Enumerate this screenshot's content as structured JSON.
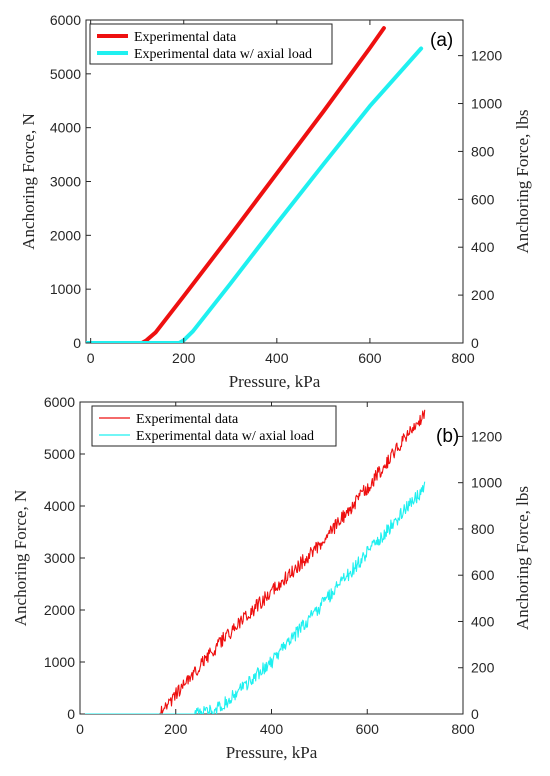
{
  "colors": {
    "series_red": "#ee1010",
    "series_cyan": "#1ff0f0",
    "axis": "#262626"
  },
  "chart_data": [
    {
      "type": "line",
      "panel_label": "(a)",
      "xlabel": "Pressure, kPa",
      "ylabel": "Anchoring Force, N",
      "ylabel_right": "Anchoring Force, lbs",
      "xlim": [
        -10,
        800
      ],
      "ylim": [
        0,
        6000
      ],
      "xticks": [
        0,
        200,
        400,
        600,
        800
      ],
      "yticks": [
        0,
        1000,
        2000,
        3000,
        4000,
        5000,
        6000
      ],
      "right_ticks_lbs": [
        0,
        200,
        400,
        600,
        800,
        1000,
        1200
      ],
      "lbs_per_newton": 0.2248,
      "legend": {
        "position": "top-left",
        "entries": [
          "Experimental data",
          "Experimental data w/ axial load"
        ]
      },
      "series": [
        {
          "name": "Experimental data",
          "color": "#ee1010",
          "style": "thick",
          "x": [
            -10,
            110,
            120,
            140,
            200,
            300,
            400,
            500,
            600,
            630
          ],
          "y": [
            0,
            0,
            50,
            200,
            870,
            2000,
            3150,
            4300,
            5480,
            5850
          ]
        },
        {
          "name": "Experimental data w/ axial load",
          "color": "#1ff0f0",
          "style": "thick",
          "x": [
            -10,
            190,
            200,
            220,
            300,
            400,
            500,
            600,
            710
          ],
          "y": [
            0,
            0,
            50,
            220,
            1100,
            2220,
            3320,
            4400,
            5470
          ]
        }
      ]
    },
    {
      "type": "line",
      "panel_label": "(b)",
      "xlabel": "Pressure, kPa",
      "ylabel": "Anchoring Force, N",
      "ylabel_right": "Anchoring Force, lbs",
      "xlim": [
        0,
        800
      ],
      "ylim": [
        0,
        6000
      ],
      "xticks": [
        0,
        200,
        400,
        600,
        800
      ],
      "yticks": [
        0,
        1000,
        2000,
        3000,
        4000,
        5000,
        6000
      ],
      "right_ticks_lbs": [
        0,
        200,
        400,
        600,
        800,
        1000,
        1200
      ],
      "lbs_per_newton": 0.2248,
      "legend": {
        "position": "top-left",
        "entries": [
          "Experimental data",
          "Experimental data w/ axial load"
        ]
      },
      "series": [
        {
          "name": "Experimental data",
          "color": "#ee1010",
          "style": "noisy",
          "x": [
            0,
            165,
            175,
            200,
            300,
            400,
            500,
            600,
            700,
            720
          ],
          "y": [
            0,
            0,
            80,
            380,
            1450,
            2350,
            3250,
            4350,
            5550,
            5750
          ]
        },
        {
          "name": "Experimental data w/ axial load",
          "color": "#1ff0f0",
          "style": "noisy",
          "x": [
            0,
            240,
            280,
            300,
            400,
            500,
            600,
            700,
            720
          ],
          "y": [
            0,
            0,
            60,
            200,
            1000,
            2050,
            3100,
            4150,
            4350
          ]
        }
      ]
    }
  ]
}
